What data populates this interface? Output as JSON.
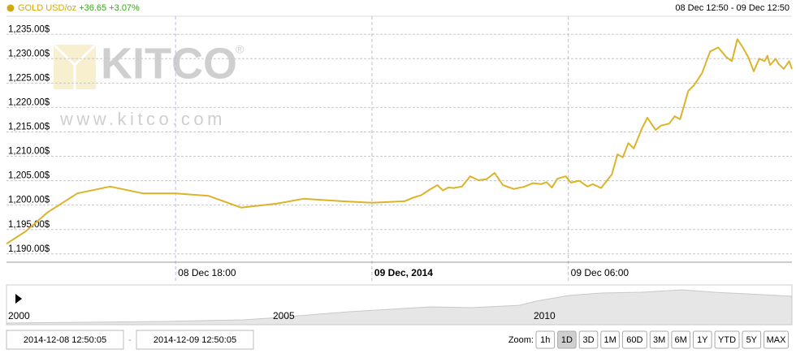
{
  "header": {
    "symbol": "GOLD USD/oz",
    "change": "+36.65",
    "change_pct": "+3.07%",
    "range": "08 Dec 12:50 - 09 Dec 12:50"
  },
  "watermark": {
    "brand": "KITCO",
    "mark": "®",
    "url": "www.kitco.com"
  },
  "chart_data": {
    "type": "line",
    "color": "#dcb32a",
    "grid": true,
    "x": [
      "2014-12-08T12:50",
      "2014-12-08T13:25",
      "2014-12-08T14:05",
      "2014-12-08T15:00",
      "2014-12-08T16:00",
      "2014-12-08T17:00",
      "2014-12-08T18:00",
      "2014-12-08T19:00",
      "2014-12-08T20:00",
      "2014-12-08T21:05",
      "2014-12-08T21:55",
      "2014-12-08T23:05",
      "2014-12-09T00:00",
      "2014-12-09T01:00",
      "2014-12-09T01:15",
      "2014-12-09T01:30",
      "2014-12-09T01:45",
      "2014-12-09T02:00",
      "2014-12-09T02:10",
      "2014-12-09T02:20",
      "2014-12-09T02:30",
      "2014-12-09T02:45",
      "2014-12-09T03:00",
      "2014-12-09T03:15",
      "2014-12-09T03:30",
      "2014-12-09T03:45",
      "2014-12-09T04:00",
      "2014-12-09T04:20",
      "2014-12-09T04:40",
      "2014-12-09T04:55",
      "2014-12-09T05:10",
      "2014-12-09T05:20",
      "2014-12-09T05:30",
      "2014-12-09T05:40",
      "2014-12-09T05:55",
      "2014-12-09T06:05",
      "2014-12-09T06:20",
      "2014-12-09T06:35",
      "2014-12-09T06:45",
      "2014-12-09T07:00",
      "2014-12-09T07:20",
      "2014-12-09T07:30",
      "2014-12-09T07:40",
      "2014-12-09T07:50",
      "2014-12-09T08:00",
      "2014-12-09T08:15",
      "2014-12-09T08:25",
      "2014-12-09T08:40",
      "2014-12-09T08:50",
      "2014-12-09T09:05",
      "2014-12-09T09:15",
      "2014-12-09T09:25",
      "2014-12-09T09:40",
      "2014-12-09T09:50",
      "2014-12-09T10:05",
      "2014-12-09T10:20",
      "2014-12-09T10:35",
      "2014-12-09T10:50",
      "2014-12-09T11:00",
      "2014-12-09T11:10",
      "2014-12-09T11:20",
      "2014-12-09T11:30",
      "2014-12-09T11:40",
      "2014-12-09T11:50",
      "2014-12-09T12:00",
      "2014-12-09T12:05",
      "2014-12-09T12:10",
      "2014-12-09T12:20",
      "2014-12-09T12:25",
      "2014-12-09T12:35",
      "2014-12-09T12:45",
      "2014-12-09T12:50"
    ],
    "values": [
      1192.1,
      1194.6,
      1198.5,
      1202.4,
      1203.8,
      1202.4,
      1202.4,
      1201.9,
      1199.5,
      1200.3,
      1201.3,
      1200.8,
      1200.5,
      1200.8,
      1201.5,
      1202.0,
      1203.1,
      1204.1,
      1203.0,
      1203.6,
      1203.5,
      1203.8,
      1205.9,
      1205.1,
      1205.3,
      1206.6,
      1204.1,
      1203.3,
      1203.8,
      1204.5,
      1204.3,
      1204.7,
      1203.6,
      1205.4,
      1205.9,
      1204.6,
      1205.0,
      1203.8,
      1204.3,
      1203.5,
      1206.3,
      1210.4,
      1209.8,
      1212.7,
      1211.6,
      1215.7,
      1217.9,
      1215.4,
      1216.3,
      1216.7,
      1218.2,
      1217.6,
      1223.4,
      1224.5,
      1227.0,
      1231.5,
      1232.3,
      1230.3,
      1229.5,
      1234.0,
      1232.3,
      1230.3,
      1227.4,
      1230.0,
      1229.5,
      1230.6,
      1228.7,
      1230.0,
      1229.0,
      1227.9,
      1229.5,
      1227.9
    ],
    "xlim": [
      "2014-12-08T12:50",
      "2014-12-09T12:50"
    ],
    "xticks": [
      {
        "value": "2014-12-08T18:00",
        "label": "08 Dec 18:00"
      },
      {
        "value": "2014-12-09T00:00",
        "label": "09 Dec, 2014",
        "bold": true
      },
      {
        "value": "2014-12-09T06:00",
        "label": "09 Dec 06:00"
      }
    ],
    "ylim": [
      1188.3,
      1238.7
    ],
    "yticks": [
      {
        "value": 1190,
        "label": "1,190.00$"
      },
      {
        "value": 1195,
        "label": "1,195.00$"
      },
      {
        "value": 1200,
        "label": "1,200.00$"
      },
      {
        "value": 1205,
        "label": "1,205.00$"
      },
      {
        "value": 1210,
        "label": "1,210.00$"
      },
      {
        "value": 1215,
        "label": "1,215.00$"
      },
      {
        "value": 1220,
        "label": "1,220.00$"
      },
      {
        "value": 1225,
        "label": "1,225.00$"
      },
      {
        "value": 1230,
        "label": "1,230.00$"
      },
      {
        "value": 1235,
        "label": "1,235.00$"
      }
    ]
  },
  "navigator": {
    "labels": [
      "2000",
      "2005",
      "2010"
    ]
  },
  "controls": {
    "from": "2014-12-08 12:50:05",
    "separator": "-",
    "to": "2014-12-09 12:50:05",
    "zoom_label": "Zoom:",
    "zoom_buttons": [
      "1h",
      "1D",
      "3D",
      "1M",
      "60D",
      "3M",
      "6M",
      "1Y",
      "YTD",
      "5Y",
      "MAX"
    ],
    "active": "1D"
  }
}
